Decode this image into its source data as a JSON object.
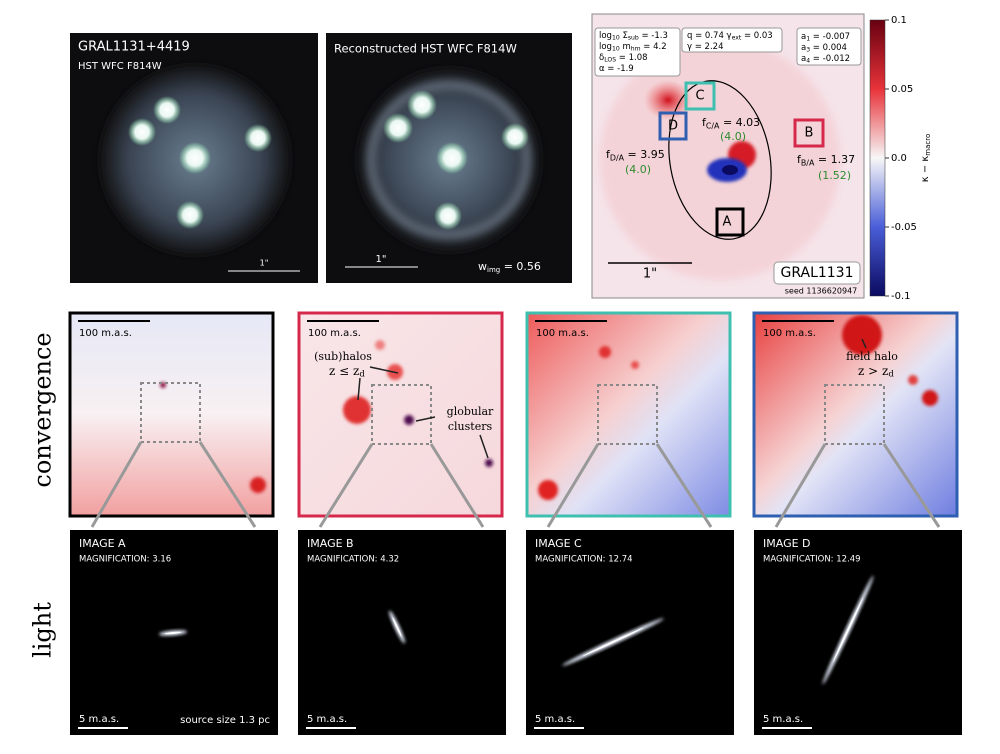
{
  "panels": {
    "observed": {
      "title": "GRAL1131+4419",
      "subtitle": "HST WFC F814W",
      "scale": "1\""
    },
    "reconstructed": {
      "title": "Reconstructed HST WFC F814W",
      "scale": "1\"",
      "weight": [
        "w",
        "img",
        " = 0.56"
      ]
    },
    "convergence_map": {
      "params_lines": [
        [
          "log",
          "10",
          " Σ",
          "sub",
          " = -1.3"
        ],
        [
          "log",
          "10",
          " m",
          "hm",
          " = 4.2"
        ],
        [
          "δ",
          "LOS",
          " = 1.08"
        ],
        [
          "α = -1.9"
        ]
      ],
      "macro_lines": [
        [
          "q = 0.74  γ",
          "ext",
          " = 0.03"
        ],
        [
          "γ = 2.24"
        ]
      ],
      "multipole_lines": [
        [
          "a",
          "1",
          " = -0.007"
        ],
        [
          "a",
          "3",
          " = 0.004"
        ],
        [
          "a",
          "4",
          " = -0.012"
        ]
      ],
      "images": [
        "A",
        "B",
        "C",
        "D"
      ],
      "flux_ratios": [
        {
          "label": [
            "f",
            "D/A",
            " = 3.95"
          ],
          "observed": "(4.0)"
        },
        {
          "label": [
            "f",
            "C/A",
            " = 4.03"
          ],
          "observed": "(4.0)"
        },
        {
          "label": [
            "f",
            "B/A",
            " = 1.37"
          ],
          "observed": "(1.52)"
        }
      ],
      "scale": "1\"",
      "name": "GRAL1131",
      "seed": "seed 1136620947",
      "colorbar": {
        "label": [
          "κ − κ",
          "macro"
        ],
        "lim": [
          -0.1,
          0.1
        ],
        "ticks": [
          0.1,
          0.05,
          {
            "value": 0,
            "label": "0.0"
          },
          -0.05,
          -0.1
        ]
      }
    }
  },
  "row_labels": [
    "convergence",
    "light"
  ],
  "convergence_panels": [
    {
      "scale": "100 m.a.s."
    },
    {
      "scale": "100 m.a.s.",
      "annotations": [
        "(sub)halos",
        [
          "z ≤ z",
          "d"
        ],
        "globular",
        "clusters"
      ]
    },
    {
      "scale": "100 m.a.s."
    },
    {
      "scale": "100 m.a.s.",
      "annotations": [
        "field halo",
        [
          "z > z",
          "d"
        ]
      ]
    }
  ],
  "light_panels": [
    {
      "title": "IMAGE A",
      "magnification": "MAGNIFICATION: 3.16",
      "scale": "5 m.a.s.",
      "note": "source size 1.3 pc"
    },
    {
      "title": "IMAGE B",
      "magnification": "MAGNIFICATION: 4.32",
      "scale": "5 m.a.s."
    },
    {
      "title": "IMAGE C",
      "magnification": "MAGNIFICATION: 12.74",
      "scale": "5 m.a.s."
    },
    {
      "title": "IMAGE D",
      "magnification": "MAGNIFICATION: 12.49",
      "scale": "5 m.a.s."
    }
  ]
}
